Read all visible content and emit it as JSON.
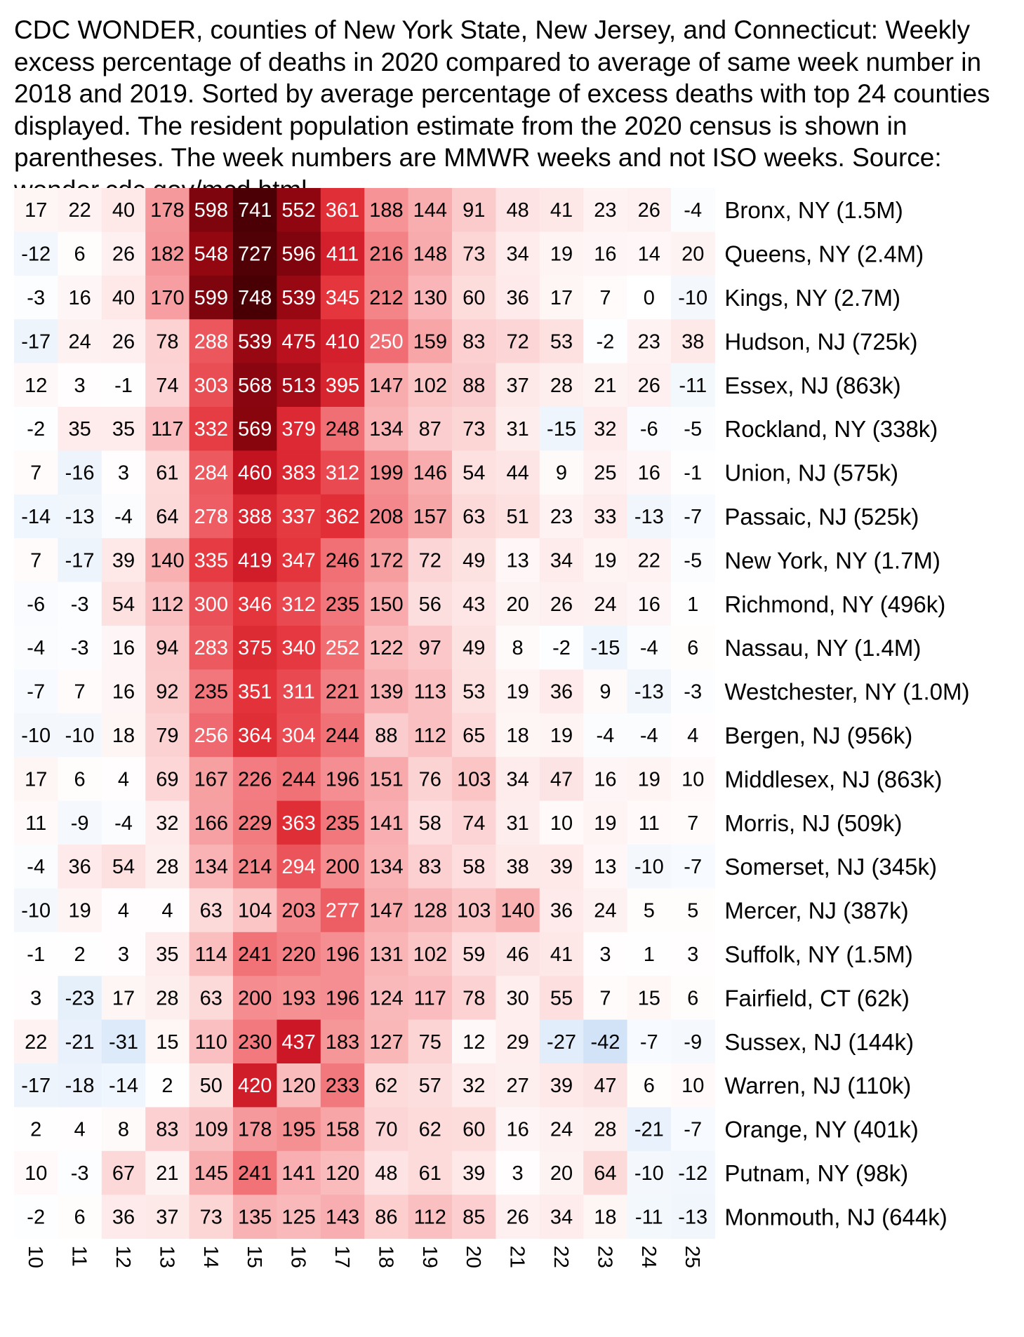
{
  "title": "CDC WONDER, counties of New York State, New Jersey, and Connecticut: Weekly excess percentage of deaths in 2020 compared to average of same week number in 2018 and 2019. Sorted by average percentage of excess deaths with top 24 counties displayed. The resident population estimate from the 2020 census is shown in parentheses. The week numbers are MMWR weeks and not ISO weeks. Source: wonder.cdc.gov/mcd.html.",
  "chart_data": {
    "type": "heatmap",
    "x": [
      "10",
      "11",
      "12",
      "13",
      "14",
      "15",
      "16",
      "17",
      "18",
      "19",
      "20",
      "21",
      "22",
      "23",
      "24",
      "25"
    ],
    "rows": [
      {
        "label": "Bronx, NY (1.5M)",
        "values": [
          17,
          22,
          40,
          178,
          598,
          741,
          552,
          361,
          188,
          144,
          91,
          48,
          41,
          23,
          26,
          -4
        ]
      },
      {
        "label": "Queens, NY (2.4M)",
        "values": [
          -12,
          6,
          26,
          182,
          548,
          727,
          596,
          411,
          216,
          148,
          73,
          34,
          19,
          16,
          14,
          20
        ]
      },
      {
        "label": "Kings, NY (2.7M)",
        "values": [
          -3,
          16,
          40,
          170,
          599,
          748,
          539,
          345,
          212,
          130,
          60,
          36,
          17,
          7,
          0,
          -10
        ]
      },
      {
        "label": "Hudson, NJ (725k)",
        "values": [
          -17,
          24,
          26,
          78,
          288,
          539,
          475,
          410,
          250,
          159,
          83,
          72,
          53,
          -2,
          23,
          38
        ]
      },
      {
        "label": "Essex, NJ (863k)",
        "values": [
          12,
          3,
          -1,
          74,
          303,
          568,
          513,
          395,
          147,
          102,
          88,
          37,
          28,
          21,
          26,
          -11
        ]
      },
      {
        "label": "Rockland, NY (338k)",
        "values": [
          -2,
          35,
          35,
          117,
          332,
          569,
          379,
          248,
          134,
          87,
          73,
          31,
          -15,
          32,
          -6,
          -5
        ]
      },
      {
        "label": "Union, NJ (575k)",
        "values": [
          7,
          -16,
          3,
          61,
          284,
          460,
          383,
          312,
          199,
          146,
          54,
          44,
          9,
          25,
          16,
          -1
        ]
      },
      {
        "label": "Passaic, NJ (525k)",
        "values": [
          -14,
          -13,
          -4,
          64,
          278,
          388,
          337,
          362,
          208,
          157,
          63,
          51,
          23,
          33,
          -13,
          -7
        ]
      },
      {
        "label": "New York, NY (1.7M)",
        "values": [
          7,
          -17,
          39,
          140,
          335,
          419,
          347,
          246,
          172,
          72,
          49,
          13,
          34,
          19,
          22,
          -5
        ]
      },
      {
        "label": "Richmond, NY (496k)",
        "values": [
          -6,
          -3,
          54,
          112,
          300,
          346,
          312,
          235,
          150,
          56,
          43,
          20,
          26,
          24,
          16,
          1
        ]
      },
      {
        "label": "Nassau, NY (1.4M)",
        "values": [
          -4,
          -3,
          16,
          94,
          283,
          375,
          340,
          252,
          122,
          97,
          49,
          8,
          -2,
          -15,
          -4,
          6
        ]
      },
      {
        "label": "Westchester, NY (1.0M)",
        "values": [
          -7,
          7,
          16,
          92,
          235,
          351,
          311,
          221,
          139,
          113,
          53,
          19,
          36,
          9,
          -13,
          -3
        ]
      },
      {
        "label": "Bergen, NJ (956k)",
        "values": [
          -10,
          -10,
          18,
          79,
          256,
          364,
          304,
          244,
          88,
          112,
          65,
          18,
          19,
          -4,
          -4,
          4
        ]
      },
      {
        "label": "Middlesex, NJ (863k)",
        "values": [
          17,
          6,
          4,
          69,
          167,
          226,
          244,
          196,
          151,
          76,
          103,
          34,
          47,
          16,
          19,
          10
        ]
      },
      {
        "label": "Morris, NJ (509k)",
        "values": [
          11,
          -9,
          -4,
          32,
          166,
          229,
          363,
          235,
          141,
          58,
          74,
          31,
          10,
          19,
          11,
          7
        ]
      },
      {
        "label": "Somerset, NJ (345k)",
        "values": [
          -4,
          36,
          54,
          28,
          134,
          214,
          294,
          200,
          134,
          83,
          58,
          38,
          39,
          13,
          -10,
          -7
        ]
      },
      {
        "label": "Mercer, NJ (387k)",
        "values": [
          -10,
          19,
          4,
          4,
          63,
          104,
          203,
          277,
          147,
          128,
          103,
          140,
          36,
          24,
          5,
          5
        ]
      },
      {
        "label": "Suffolk, NY (1.5M)",
        "values": [
          -1,
          2,
          3,
          35,
          114,
          241,
          220,
          196,
          131,
          102,
          59,
          46,
          41,
          3,
          1,
          3
        ]
      },
      {
        "label": "Fairfield, CT (62k)",
        "values": [
          3,
          -23,
          17,
          28,
          63,
          200,
          193,
          196,
          124,
          117,
          78,
          30,
          55,
          7,
          15,
          6
        ]
      },
      {
        "label": "Sussex, NJ (144k)",
        "values": [
          22,
          -21,
          -31,
          15,
          110,
          230,
          437,
          183,
          127,
          75,
          12,
          29,
          -27,
          -42,
          -7,
          -9
        ]
      },
      {
        "label": "Warren, NJ (110k)",
        "values": [
          -17,
          -18,
          -14,
          2,
          50,
          420,
          120,
          233,
          62,
          57,
          32,
          27,
          39,
          47,
          6,
          10
        ]
      },
      {
        "label": "Orange, NY (401k)",
        "values": [
          2,
          4,
          8,
          83,
          109,
          178,
          195,
          158,
          70,
          62,
          60,
          16,
          24,
          28,
          -21,
          -7
        ]
      },
      {
        "label": "Putnam, NY (98k)",
        "values": [
          10,
          -3,
          67,
          21,
          145,
          241,
          141,
          120,
          48,
          61,
          39,
          3,
          20,
          64,
          -10,
          -12
        ]
      },
      {
        "label": "Monmouth, NJ (644k)",
        "values": [
          -2,
          6,
          36,
          37,
          73,
          135,
          125,
          143,
          86,
          112,
          85,
          26,
          34,
          18,
          -11,
          -13
        ]
      }
    ]
  }
}
